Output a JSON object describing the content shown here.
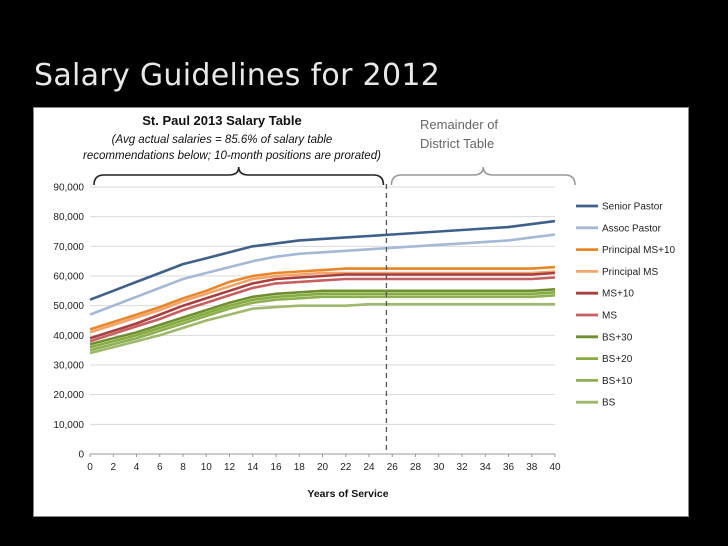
{
  "slide": {
    "title": "Salary Guidelines for 2012"
  },
  "chart_data": {
    "type": "line",
    "title": "St. Paul 2013 Salary Table",
    "subtitle_lines": [
      "(Avg actual salaries = 85.6% of salary table",
      "recommendations below; 10-month positions are prorated)"
    ],
    "annotation": "Remainder of District Table",
    "annotation_lines": [
      "Remainder of",
      "District Table"
    ],
    "xlabel": "Years of Service",
    "ylabel": "",
    "xlim": [
      0,
      40
    ],
    "ylim": [
      0,
      90000
    ],
    "y_ticks": [
      0,
      10000,
      20000,
      30000,
      40000,
      50000,
      60000,
      70000,
      80000,
      90000
    ],
    "y_tick_labels": [
      "0",
      "10,000",
      "20,000",
      "30,000",
      "40,000",
      "50,000",
      "60,000",
      "70,000",
      "80,000",
      "90,000"
    ],
    "x_ticks": [
      0,
      2,
      4,
      6,
      8,
      10,
      12,
      14,
      16,
      18,
      20,
      22,
      24,
      26,
      28,
      30,
      32,
      34,
      36,
      38,
      40
    ],
    "divider_x": 25.5,
    "grid": true,
    "legend": "right",
    "x": [
      0,
      2,
      4,
      6,
      8,
      10,
      12,
      14,
      16,
      18,
      20,
      22,
      24,
      26,
      28,
      30,
      32,
      34,
      36,
      38,
      40
    ],
    "series": [
      {
        "name": "Senior Pastor",
        "color": "#3f6189",
        "values": [
          52000,
          55000,
          58000,
          61000,
          64000,
          66000,
          68000,
          70000,
          71000,
          72000,
          72500,
          73000,
          73500,
          74000,
          74500,
          75000,
          75500,
          76000,
          76500,
          77500,
          78500
        ]
      },
      {
        "name": "Assoc Pastor",
        "color": "#a5b9d5",
        "values": [
          47000,
          50000,
          53000,
          56000,
          59000,
          61000,
          63000,
          65000,
          66500,
          67500,
          68000,
          68500,
          69000,
          69500,
          70000,
          70500,
          71000,
          71500,
          72000,
          73000,
          74000
        ]
      },
      {
        "name": "Principal MS+10",
        "color": "#e8862a",
        "values": [
          42000,
          44500,
          47000,
          49500,
          52500,
          55000,
          58000,
          60000,
          61000,
          61500,
          62000,
          62500,
          62500,
          62500,
          62500,
          62500,
          62500,
          62500,
          62500,
          62500,
          63000
        ]
      },
      {
        "name": "Principal MS",
        "color": "#f2a46b",
        "values": [
          41000,
          43500,
          46000,
          48500,
          51500,
          54000,
          56500,
          59000,
          60000,
          60500,
          61000,
          61000,
          61000,
          61000,
          61000,
          61000,
          61000,
          61000,
          61000,
          61000,
          61500
        ]
      },
      {
        "name": "MS+10",
        "color": "#a8403f",
        "values": [
          39000,
          41500,
          44000,
          47000,
          50000,
          52500,
          55000,
          57500,
          59000,
          59500,
          60000,
          60500,
          60500,
          60500,
          60500,
          60500,
          60500,
          60500,
          60500,
          60500,
          61000
        ]
      },
      {
        "name": "MS",
        "color": "#c66060",
        "values": [
          38000,
          40500,
          43000,
          45500,
          48500,
          51000,
          53500,
          56000,
          57500,
          58000,
          58500,
          59000,
          59000,
          59000,
          59000,
          59000,
          59000,
          59000,
          59000,
          59000,
          59500
        ]
      },
      {
        "name": "BS+30",
        "color": "#6f8f2e",
        "values": [
          37000,
          39000,
          41000,
          43500,
          46000,
          48500,
          51000,
          53000,
          54000,
          54500,
          55000,
          55000,
          55000,
          55000,
          55000,
          55000,
          55000,
          55000,
          55000,
          55000,
          55500
        ]
      },
      {
        "name": "BS+20",
        "color": "#86ac3f",
        "values": [
          36000,
          38000,
          40000,
          42500,
          45000,
          47500,
          50000,
          52000,
          53000,
          53500,
          54000,
          54000,
          54000,
          54000,
          54000,
          54000,
          54000,
          54000,
          54000,
          54000,
          54500
        ]
      },
      {
        "name": "BS+10",
        "color": "#8fb052",
        "values": [
          35000,
          37000,
          39000,
          41500,
          44000,
          46500,
          49000,
          51000,
          52000,
          52500,
          53000,
          53000,
          53000,
          53000,
          53000,
          53000,
          53000,
          53000,
          53000,
          53000,
          53500
        ]
      },
      {
        "name": "BS",
        "color": "#9fb86e",
        "values": [
          34000,
          36000,
          38000,
          40000,
          42500,
          45000,
          47000,
          49000,
          49500,
          50000,
          50000,
          50000,
          50500,
          50500,
          50500,
          50500,
          50500,
          50500,
          50500,
          50500,
          50500
        ]
      }
    ]
  }
}
